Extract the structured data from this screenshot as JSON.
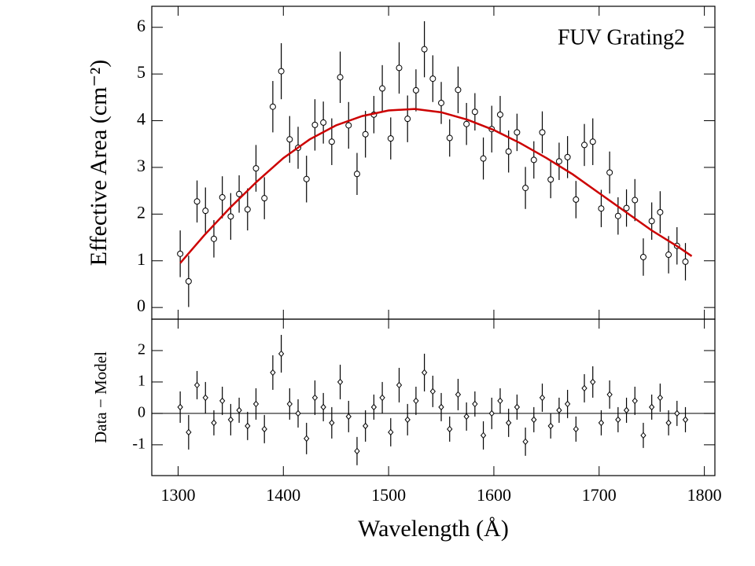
{
  "chart_data": [
    {
      "type": "scatter",
      "annotation": "FUV Grating2",
      "ylabel": "Effective Area (cm⁻²)",
      "xlim": [
        1275,
        1810
      ],
      "ylim": [
        -0.25,
        6.45
      ],
      "xticks": [
        1300,
        1400,
        1500,
        1600,
        1700,
        1800
      ],
      "yticks": [
        0,
        1,
        2,
        3,
        4,
        5,
        6
      ],
      "marker": "circle",
      "x": [
        1302,
        1310,
        1318,
        1326,
        1334,
        1342,
        1350,
        1358,
        1366,
        1374,
        1382,
        1390,
        1398,
        1406,
        1414,
        1422,
        1430,
        1438,
        1446,
        1454,
        1462,
        1470,
        1478,
        1486,
        1494,
        1502,
        1510,
        1518,
        1526,
        1534,
        1542,
        1550,
        1558,
        1566,
        1574,
        1582,
        1590,
        1598,
        1606,
        1614,
        1622,
        1630,
        1638,
        1646,
        1654,
        1662,
        1670,
        1678,
        1686,
        1694,
        1702,
        1710,
        1718,
        1726,
        1734,
        1742,
        1750,
        1758,
        1766,
        1774,
        1782
      ],
      "series": [
        {
          "color": "#000000",
          "values": [
            1.15,
            0.56,
            2.27,
            2.07,
            1.47,
            2.36,
            1.95,
            2.43,
            2.1,
            2.98,
            2.34,
            4.3,
            5.06,
            3.6,
            3.42,
            2.75,
            3.91,
            3.96,
            3.55,
            4.93,
            3.9,
            2.86,
            3.71,
            4.13,
            4.69,
            3.62,
            5.13,
            4.04,
            4.65,
            5.53,
            4.9,
            4.38,
            3.63,
            4.66,
            3.93,
            4.19,
            3.19,
            3.82,
            4.13,
            3.34,
            3.75,
            2.56,
            3.16,
            3.75,
            2.74,
            3.13,
            3.22,
            2.31,
            3.48,
            3.55,
            2.12,
            2.89,
            1.96,
            2.13,
            2.3,
            1.08,
            1.85,
            2.04,
            1.13,
            1.32,
            0.98
          ],
          "errors": [
            0.5,
            0.55,
            0.45,
            0.5,
            0.4,
            0.45,
            0.5,
            0.4,
            0.45,
            0.5,
            0.45,
            0.55,
            0.6,
            0.5,
            0.45,
            0.5,
            0.55,
            0.45,
            0.5,
            0.55,
            0.5,
            0.45,
            0.5,
            0.4,
            0.5,
            0.45,
            0.55,
            0.5,
            0.45,
            0.6,
            0.5,
            0.45,
            0.4,
            0.5,
            0.45,
            0.4,
            0.45,
            0.5,
            0.4,
            0.45,
            0.4,
            0.45,
            0.4,
            0.45,
            0.4,
            0.4,
            0.45,
            0.4,
            0.45,
            0.5,
            0.4,
            0.45,
            0.4,
            0.4,
            0.45,
            0.4,
            0.4,
            0.45,
            0.4,
            0.4,
            0.4
          ]
        }
      ],
      "model": {
        "color": "#cc0000",
        "x": [
          1302,
          1325,
          1350,
          1375,
          1400,
          1425,
          1450,
          1475,
          1500,
          1525,
          1550,
          1575,
          1600,
          1625,
          1650,
          1675,
          1700,
          1725,
          1750,
          1775,
          1788
        ],
        "values": [
          0.95,
          1.55,
          2.15,
          2.7,
          3.2,
          3.6,
          3.9,
          4.1,
          4.22,
          4.25,
          4.18,
          4.02,
          3.8,
          3.52,
          3.2,
          2.85,
          2.45,
          2.05,
          1.65,
          1.3,
          1.1
        ]
      }
    },
    {
      "type": "scatter",
      "xlabel": "Wavelength (Å)",
      "ylabel": "Data − Model",
      "xlim": [
        1275,
        1810
      ],
      "ylim": [
        -1.98,
        3
      ],
      "xticks": [
        1300,
        1400,
        1500,
        1600,
        1700,
        1800
      ],
      "yticks": [
        -1,
        0,
        1,
        2
      ],
      "hline": 0,
      "marker": "diamond",
      "x": [
        1302,
        1310,
        1318,
        1326,
        1334,
        1342,
        1350,
        1358,
        1366,
        1374,
        1382,
        1390,
        1398,
        1406,
        1414,
        1422,
        1430,
        1438,
        1446,
        1454,
        1462,
        1470,
        1478,
        1486,
        1494,
        1502,
        1510,
        1518,
        1526,
        1534,
        1542,
        1550,
        1558,
        1566,
        1574,
        1582,
        1590,
        1598,
        1606,
        1614,
        1622,
        1630,
        1638,
        1646,
        1654,
        1662,
        1670,
        1678,
        1686,
        1694,
        1702,
        1710,
        1718,
        1726,
        1734,
        1742,
        1750,
        1758,
        1766,
        1774,
        1782
      ],
      "series": [
        {
          "color": "#000000",
          "values": [
            0.2,
            -0.6,
            0.9,
            0.5,
            -0.3,
            0.4,
            -0.2,
            0.1,
            -0.4,
            0.3,
            -0.5,
            1.3,
            1.9,
            0.3,
            0.0,
            -0.8,
            0.5,
            0.2,
            -0.3,
            1.0,
            -0.1,
            -1.2,
            -0.4,
            0.2,
            0.5,
            -0.6,
            0.9,
            -0.2,
            0.4,
            1.3,
            0.7,
            0.2,
            -0.5,
            0.6,
            -0.1,
            0.3,
            -0.7,
            0.0,
            0.4,
            -0.3,
            0.2,
            -0.9,
            -0.2,
            0.5,
            -0.4,
            0.1,
            0.3,
            -0.5,
            0.8,
            1.0,
            -0.3,
            0.6,
            -0.2,
            0.1,
            0.4,
            -0.7,
            0.2,
            0.5,
            -0.3,
            0.0,
            -0.2
          ],
          "errors": [
            0.5,
            0.55,
            0.45,
            0.5,
            0.4,
            0.45,
            0.5,
            0.4,
            0.45,
            0.5,
            0.45,
            0.55,
            0.6,
            0.5,
            0.45,
            0.5,
            0.55,
            0.45,
            0.5,
            0.55,
            0.5,
            0.45,
            0.5,
            0.4,
            0.5,
            0.45,
            0.55,
            0.5,
            0.45,
            0.6,
            0.5,
            0.45,
            0.4,
            0.5,
            0.45,
            0.4,
            0.45,
            0.5,
            0.4,
            0.45,
            0.4,
            0.45,
            0.4,
            0.45,
            0.4,
            0.4,
            0.45,
            0.4,
            0.45,
            0.5,
            0.4,
            0.45,
            0.4,
            0.4,
            0.45,
            0.4,
            0.4,
            0.45,
            0.4,
            0.4,
            0.4
          ]
        }
      ]
    }
  ]
}
